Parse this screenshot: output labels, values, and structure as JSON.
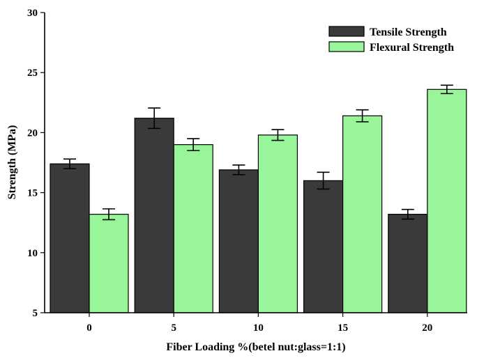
{
  "chart_data": {
    "type": "bar",
    "xlabel": "Fiber Loading %(betel nut:glass=1:1)",
    "ylabel": "Strength (MPa)",
    "categories": [
      "0",
      "5",
      "10",
      "15",
      "20"
    ],
    "ylim": [
      5,
      30
    ],
    "yticks": [
      "5",
      "10",
      "15",
      "20",
      "25",
      "30"
    ],
    "legend_position": "top-right",
    "grid": false,
    "series": [
      {
        "name": "Tensile Strength",
        "color": "#3a3a3a",
        "values": [
          17.4,
          21.2,
          16.9,
          16.0,
          13.2
        ],
        "errors": [
          0.4,
          0.85,
          0.4,
          0.7,
          0.4
        ]
      },
      {
        "name": "Flexural Strength",
        "color": "#99f599",
        "values": [
          13.2,
          19.0,
          19.8,
          21.4,
          23.6
        ],
        "errors": [
          0.45,
          0.5,
          0.45,
          0.5,
          0.35
        ]
      }
    ]
  }
}
